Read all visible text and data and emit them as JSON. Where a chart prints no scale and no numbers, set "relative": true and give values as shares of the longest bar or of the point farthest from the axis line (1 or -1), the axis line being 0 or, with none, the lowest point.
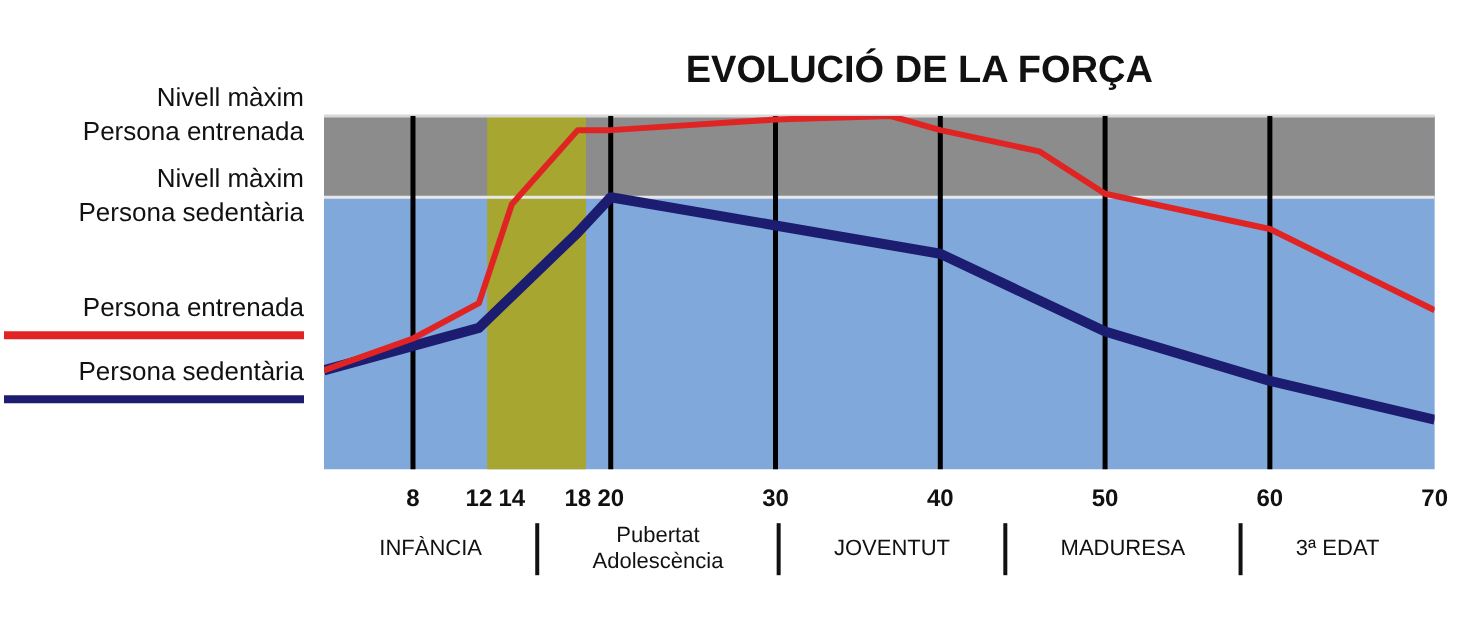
{
  "chart_data": {
    "type": "line",
    "title": "EVOLUCIÓ DE LA FORÇA",
    "relative": true,
    "legend": "left",
    "line_style": "solid",
    "marker": "none",
    "xlim": [
      2.6,
      70
    ],
    "xticks": [
      8,
      12,
      14,
      18,
      20,
      30,
      40,
      50,
      60,
      70
    ],
    "series": [
      {
        "name": "Persona entrenada",
        "color": "#e02424",
        "x": [
          2.6,
          8,
          12,
          14,
          18,
          20,
          30,
          37,
          40,
          46,
          50,
          60,
          70
        ],
        "values": [
          0.28,
          0.37,
          0.47,
          0.75,
          0.96,
          0.96,
          0.99,
          1.0,
          0.96,
          0.9,
          0.78,
          0.68,
          0.45
        ]
      },
      {
        "name": "Persona sedentària",
        "color": "#1c1c70",
        "x": [
          2.6,
          12,
          18,
          20,
          30,
          40,
          50,
          60,
          70
        ],
        "values": [
          0.28,
          0.4,
          0.67,
          0.77,
          0.69,
          0.61,
          0.39,
          0.25,
          0.14
        ]
      }
    ],
    "bands": [
      {
        "axis": "y",
        "from": 0.77,
        "to": 1.0,
        "color": "#8c8c8c"
      },
      {
        "axis": "x",
        "from": 12.5,
        "to": 18.5,
        "color": "#a6a630"
      }
    ],
    "annotations": [
      "INFÀNCIA",
      "Pubertat\nAdolescència",
      "JOVENTUT",
      "MADURESA",
      "3ª EDAT"
    ],
    "ref_lines": [
      {
        "axis": "y",
        "value": 1.0,
        "label": "Nivell màxim\nPersona entrenada",
        "color": "#d8d8d8"
      },
      {
        "axis": "y",
        "value": 0.77,
        "label": "Nivell màxim\nPersona sedentària",
        "color": "#e8e8e8"
      },
      {
        "axis": "x",
        "value": 8,
        "color": "#000000"
      },
      {
        "axis": "x",
        "value": 20,
        "color": "#000000"
      },
      {
        "axis": "x",
        "value": 30,
        "color": "#000000"
      },
      {
        "axis": "x",
        "value": 40,
        "color": "#000000"
      },
      {
        "axis": "x",
        "value": 50,
        "color": "#000000"
      },
      {
        "axis": "x",
        "value": 60,
        "color": "#000000"
      }
    ]
  }
}
